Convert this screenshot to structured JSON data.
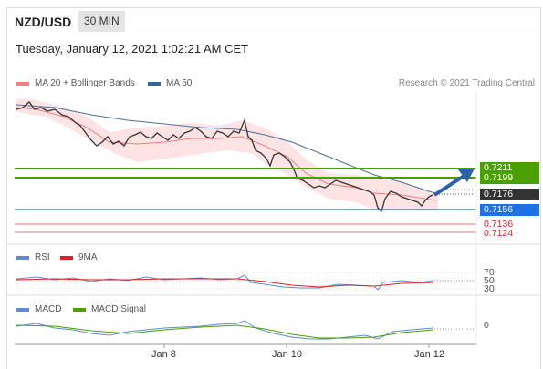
{
  "header": {
    "symbol": "NZD/USD",
    "timeframe": "30 MIN"
  },
  "datetime": "Tuesday, January 12, 2021 1:02:21 AM CET",
  "legend_main": [
    {
      "label": "MA 20 + Bollinger Bands",
      "color": "#f08080"
    },
    {
      "label": "MA 50",
      "color": "#336699"
    }
  ],
  "credit": "Research © 2021 Trading Central",
  "price_levels": {
    "resistance_2": "0.7211",
    "resistance_1": "0.7199",
    "last_price": "0.7176",
    "pivot": "0.7156",
    "support_1": "0.7136",
    "support_2": "0.7124"
  },
  "colors": {
    "green": "#4aa000",
    "blue": "#1f6fe5",
    "red": "#e02020",
    "dark": "#333333",
    "arrow": "#2a62a8"
  },
  "rsi_panel": {
    "legend": [
      {
        "label": "RSI",
        "color": "#5b8dd6"
      },
      {
        "label": "9MA",
        "color": "#e02020"
      }
    ],
    "levels": [
      "70",
      "50",
      "30"
    ]
  },
  "macd_panel": {
    "legend": [
      {
        "label": "MACD",
        "color": "#5b8dd6"
      },
      {
        "label": "MACD Signal",
        "color": "#4aa000"
      }
    ],
    "zero_label": "0"
  },
  "x_axis": [
    "Jan 8",
    "Jan 10",
    "Jan 12"
  ]
}
